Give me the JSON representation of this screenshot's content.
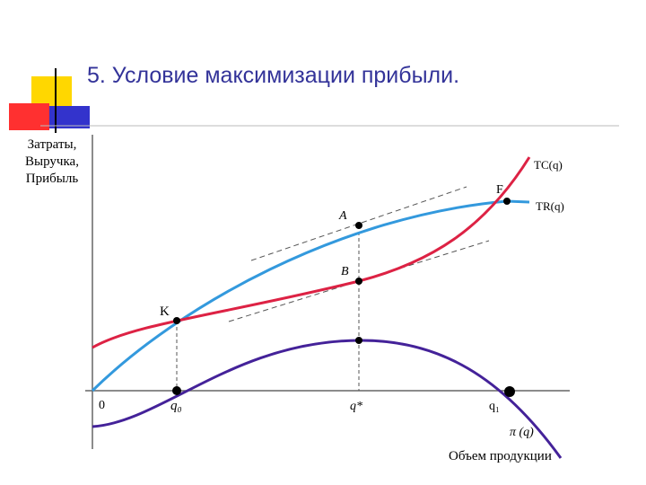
{
  "title": "5. Условие максимизации прибыли.",
  "y_axis_label": [
    "Затраты,",
    "Выручка,",
    "Прибыль"
  ],
  "x_axis_label": "Объем продукции",
  "curves": [
    {
      "label": "TC(q)"
    },
    {
      "label": "TR(q)"
    },
    {
      "label": "π (q)"
    }
  ],
  "points": [
    "A",
    "B",
    "K",
    "F"
  ],
  "x_ticks": [
    "0",
    "q₀",
    "q*",
    "q₁"
  ]
}
